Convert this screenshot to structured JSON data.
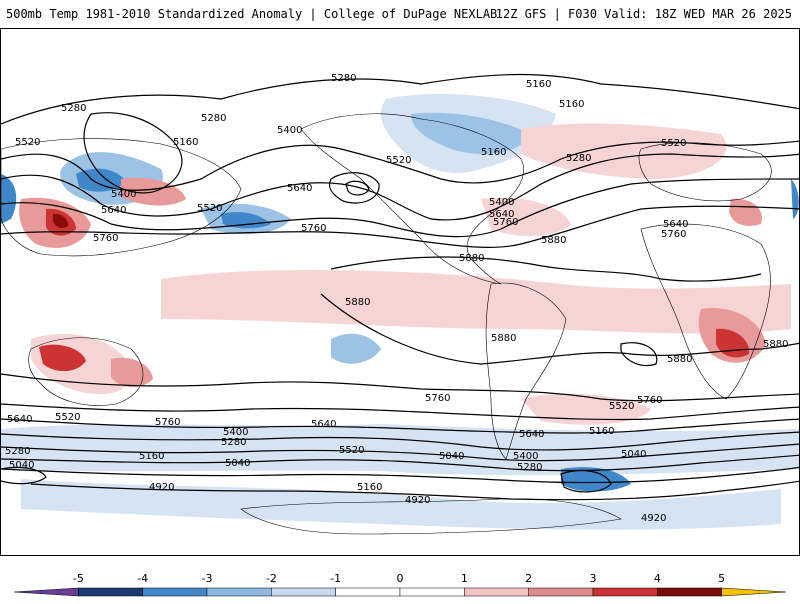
{
  "header": {
    "title": "500mb Temp 1981-2010 Standardized Anomaly | College of DuPage NEXLAB",
    "run_info": "12Z GFS | F030 Valid: 18Z WED MAR 26 2025"
  },
  "map": {
    "contour_labels": [
      "5280",
      "5160",
      "5520",
      "5400",
      "5640",
      "5760",
      "5880",
      "5040",
      "4920"
    ],
    "colors": {
      "warm_light": "#f6d4d4",
      "warm_mid": "#e89a9a",
      "warm_strong": "#cc3333",
      "warm_extreme": "#8b0a0a",
      "cold_light": "#d6e3f3",
      "cold_mid": "#9cc3e6",
      "cold_strong": "#3f87c9",
      "cold_extreme": "#1f4e8c",
      "land_outline": "#000000"
    }
  },
  "colorbar": {
    "ticks": [
      "-5",
      "-4",
      "-3",
      "-2",
      "-1",
      "0",
      "1",
      "2",
      "3",
      "4",
      "5"
    ],
    "segments": [
      "#6a3d9a",
      "#1f3a6e",
      "#3f87c9",
      "#8fb6df",
      "#c9d9ee",
      "#ffffff",
      "#ffffff",
      "#f3c2c2",
      "#e08a8a",
      "#c93232",
      "#7a0b0b",
      "#f2c200"
    ]
  }
}
